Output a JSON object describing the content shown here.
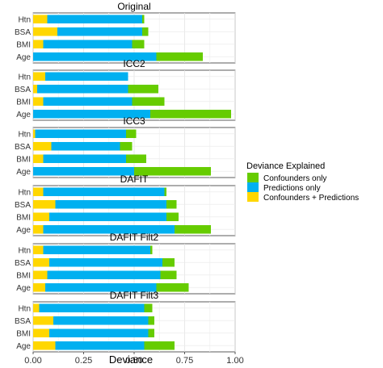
{
  "chart_data": {
    "type": "bar",
    "orientation": "horizontal",
    "stacked": true,
    "xlabel": "Deviance",
    "xlim": [
      0,
      1
    ],
    "xticks": [
      "0.00",
      "0.25",
      "0.50",
      "0.75",
      "1.00"
    ],
    "grid": true,
    "legend": {
      "title": "Deviance Explained",
      "position": "right",
      "items": [
        {
          "name": "Confounders only",
          "color": "#66cc00"
        },
        {
          "name": "Predictions only",
          "color": "#00b0f0"
        },
        {
          "name": "Confounders + Predictions",
          "color": "#ffd700"
        }
      ]
    },
    "categories": [
      "Htn",
      "BSA",
      "BMI",
      "Age"
    ],
    "panels": [
      {
        "title": "Original",
        "both": [
          0.07,
          0.12,
          0.05,
          0.0
        ],
        "pred": [
          0.47,
          0.42,
          0.44,
          0.61
        ],
        "conf": [
          0.01,
          0.03,
          0.06,
          0.23
        ]
      },
      {
        "title": "ICC2",
        "both": [
          0.06,
          0.02,
          0.05,
          0.0
        ],
        "pred": [
          0.41,
          0.45,
          0.44,
          0.58
        ],
        "conf": [
          0.0,
          0.15,
          0.16,
          0.4
        ]
      },
      {
        "title": "ICC3",
        "both": [
          0.01,
          0.09,
          0.05,
          0.0
        ],
        "pred": [
          0.45,
          0.34,
          0.41,
          0.5
        ],
        "conf": [
          0.05,
          0.06,
          0.1,
          0.38
        ]
      },
      {
        "title": "DAFIT",
        "both": [
          0.05,
          0.11,
          0.08,
          0.05
        ],
        "pred": [
          0.6,
          0.55,
          0.58,
          0.65
        ],
        "conf": [
          0.01,
          0.05,
          0.06,
          0.18
        ]
      },
      {
        "title": "DAFIT Filt2",
        "both": [
          0.05,
          0.08,
          0.07,
          0.06
        ],
        "pred": [
          0.53,
          0.56,
          0.56,
          0.55
        ],
        "conf": [
          0.01,
          0.06,
          0.08,
          0.16
        ]
      },
      {
        "title": "DAFIT Filt3",
        "both": [
          0.03,
          0.1,
          0.08,
          0.11
        ],
        "pred": [
          0.52,
          0.47,
          0.49,
          0.44
        ],
        "conf": [
          0.04,
          0.03,
          0.03,
          0.15
        ]
      }
    ]
  }
}
